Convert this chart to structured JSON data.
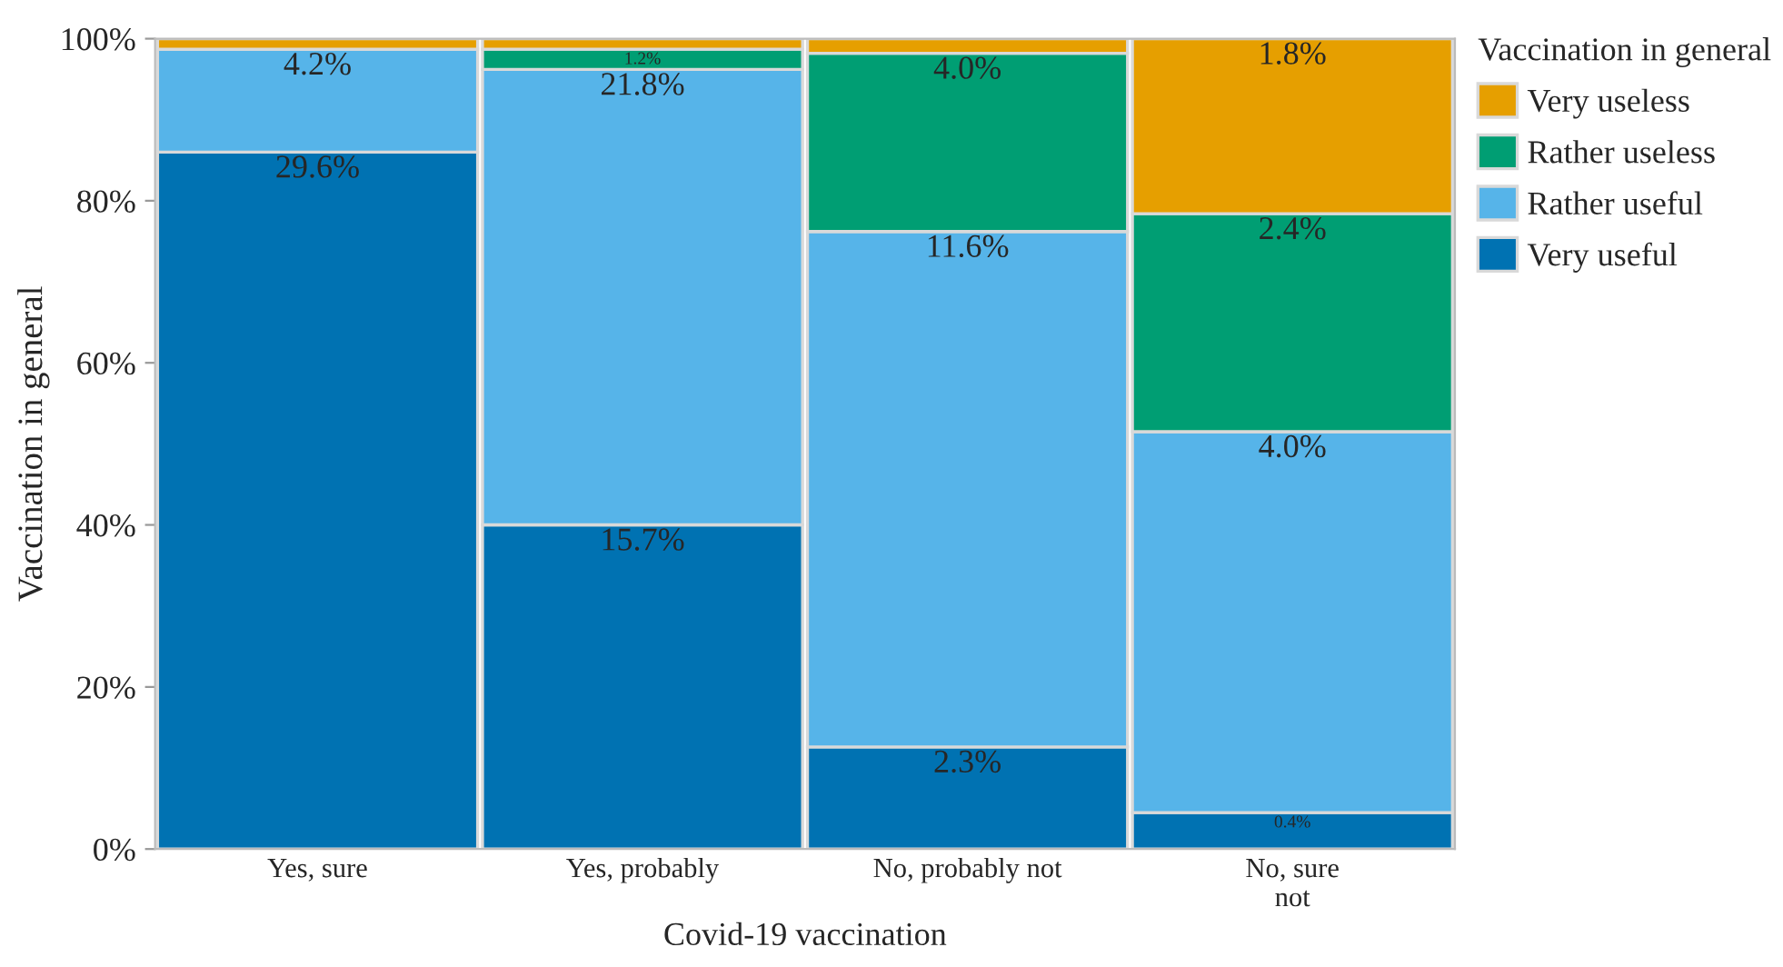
{
  "chart_data": {
    "type": "bar",
    "stacked": true,
    "xlabel": "Covid-19 vaccination",
    "ylabel": "Vaccination in general",
    "legend_title": "Vaccination in general",
    "categories": [
      "Yes, sure",
      "Yes, probably",
      "No, probably not",
      "No, sure\nnot"
    ],
    "series": [
      {
        "name": "Very useful",
        "color": "#0072b2",
        "values": [
          86,
          40,
          12.6,
          4.5
        ]
      },
      {
        "name": "Rather useful",
        "color": "#56b4e9",
        "values": [
          12.7,
          56.2,
          63.6,
          47
        ]
      },
      {
        "name": "Rather useless",
        "color": "#009e73",
        "values": [
          0,
          2.5,
          22,
          26.9
        ]
      },
      {
        "name": "Very useless",
        "color": "#e69f00",
        "values": [
          1.3,
          1.3,
          1.8,
          21.6
        ]
      }
    ],
    "annotations": [
      {
        "text": "29.6%",
        "x": "Yes, sure",
        "y": 86
      },
      {
        "text": "4.2%",
        "x": "Yes, sure",
        "y": 98.7
      },
      {
        "text": "15.7%",
        "x": "Yes, probably",
        "y": 40
      },
      {
        "text": "21.8%",
        "x": "Yes, probably",
        "y": 96.2
      },
      {
        "text": "1.2%",
        "x": "Yes, probably",
        "y": 98.7
      },
      {
        "text": "2.3%",
        "x": "No, probably not",
        "y": 12.6
      },
      {
        "text": "11.6%",
        "x": "No, probably not",
        "y": 76.2
      },
      {
        "text": "4.0%",
        "x": "No, probably not",
        "y": 98.2
      },
      {
        "text": "0.4%",
        "x": "No, sure\nnot",
        "y": 4.5
      },
      {
        "text": "4.0%",
        "x": "No, sure\nnot",
        "y": 51.5
      },
      {
        "text": "2.4%",
        "x": "No, sure\nnot",
        "y": 78.4
      },
      {
        "text": "1.8%",
        "x": "No, sure\nnot",
        "y": 100
      }
    ],
    "ylim": [
      0,
      100
    ],
    "yticks": [
      {
        "value": 0,
        "label": "0%"
      },
      {
        "value": 20,
        "label": "20%"
      },
      {
        "value": 40,
        "label": "40%"
      },
      {
        "value": 60,
        "label": "60%"
      },
      {
        "value": 80,
        "label": "80%"
      },
      {
        "value": 100,
        "label": "100%"
      }
    ],
    "legend": "top right"
  }
}
